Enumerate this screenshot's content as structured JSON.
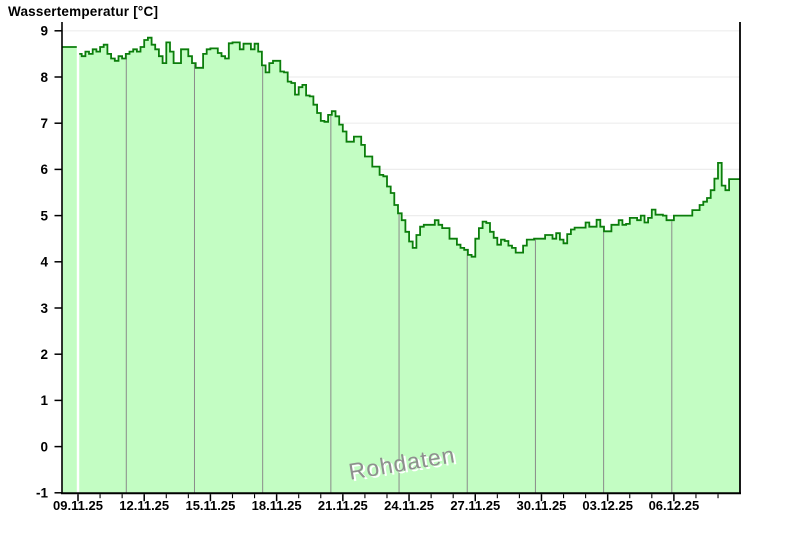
{
  "header": {
    "title": "Wassertemperatur [°C]"
  },
  "watermark": {
    "text": "Rohdaten"
  },
  "colors": {
    "fill": "#c3fdc3",
    "line": "#0b7d0b",
    "axis": "#000000",
    "h_grid": "#ededed",
    "day_marker": "#8a8a8a",
    "background": "#ffffff",
    "watermark_text": "#8f8f8f"
  },
  "chart_data": {
    "type": "area",
    "title": "Wassertemperatur [°C]",
    "ylabel": "Wassertemperatur [°C]",
    "ylim": [
      -1,
      9
    ],
    "y_ticks": [
      9,
      8,
      7,
      6,
      5,
      4,
      3,
      2,
      1,
      0,
      -1
    ],
    "x_tick_labels": [
      "09.11.25",
      "12.11.25",
      "15.11.25",
      "18.11.25",
      "21.11.25",
      "24.11.25",
      "27.11.25",
      "30.11.25",
      "03.12.25",
      "06.12.25"
    ],
    "x_tick_interval_days": 3,
    "minor_tick_interval_days": 1,
    "series_start": "08.11.25 04:00",
    "series_end": "09.12.25 00:00",
    "step_hours": 4,
    "data_gap_at": "09.11.25 00:00",
    "day_marker_dates": [
      "12.11.25",
      "15.11.25",
      "18.11.25",
      "21.11.25",
      "24.11.25",
      "27.11.25",
      "30.11.25",
      "03.12.25",
      "06.12.25"
    ],
    "legend": "none",
    "grid": "horizontal-faint",
    "values": [
      8.65,
      8.65,
      8.65,
      8.65,
      8.65,
      8.5,
      8.45,
      8.55,
      8.5,
      8.6,
      8.55,
      8.65,
      8.7,
      8.5,
      8.4,
      8.35,
      8.45,
      8.4,
      8.5,
      8.55,
      8.6,
      8.55,
      8.65,
      8.8,
      8.85,
      8.7,
      8.6,
      8.45,
      8.3,
      8.75,
      8.55,
      8.3,
      8.3,
      8.6,
      8.6,
      8.45,
      8.3,
      8.2,
      8.2,
      8.5,
      8.6,
      8.62,
      8.62,
      8.52,
      8.45,
      8.4,
      8.73,
      8.75,
      8.75,
      8.6,
      8.72,
      8.72,
      8.6,
      8.72,
      8.55,
      8.25,
      8.1,
      8.3,
      8.35,
      8.35,
      8.12,
      8.1,
      7.9,
      7.87,
      7.62,
      7.78,
      7.83,
      7.6,
      7.58,
      7.4,
      7.22,
      7.05,
      7.03,
      7.18,
      7.26,
      7.15,
      6.97,
      6.82,
      6.6,
      6.6,
      6.71,
      6.71,
      6.53,
      6.28,
      6.28,
      6.06,
      6.06,
      5.88,
      5.85,
      5.63,
      5.49,
      5.23,
      5.05,
      4.9,
      4.65,
      4.44,
      4.3,
      4.58,
      4.76,
      4.8,
      4.8,
      4.8,
      4.9,
      4.8,
      4.73,
      4.73,
      4.5,
      4.5,
      4.37,
      4.3,
      4.26,
      4.15,
      4.11,
      4.5,
      4.73,
      4.87,
      4.84,
      4.65,
      4.52,
      4.37,
      4.48,
      4.45,
      4.35,
      4.3,
      4.2,
      4.2,
      4.35,
      4.48,
      4.48,
      4.5,
      4.5,
      4.5,
      4.58,
      4.58,
      4.5,
      4.62,
      4.48,
      4.4,
      4.6,
      4.7,
      4.74,
      4.74,
      4.74,
      4.85,
      4.76,
      4.76,
      4.91,
      4.76,
      4.66,
      4.66,
      4.8,
      4.8,
      4.9,
      4.8,
      4.82,
      4.95,
      4.95,
      4.9,
      5.0,
      4.85,
      4.95,
      5.13,
      5.02,
      5.02,
      5.0,
      4.9,
      4.9,
      5.0,
      5.0,
      5.0,
      5.0,
      5.0,
      5.12,
      5.12,
      5.23,
      5.3,
      5.38,
      5.55,
      5.8,
      6.14,
      5.65,
      5.55,
      5.79,
      5.79,
      5.79
    ]
  }
}
